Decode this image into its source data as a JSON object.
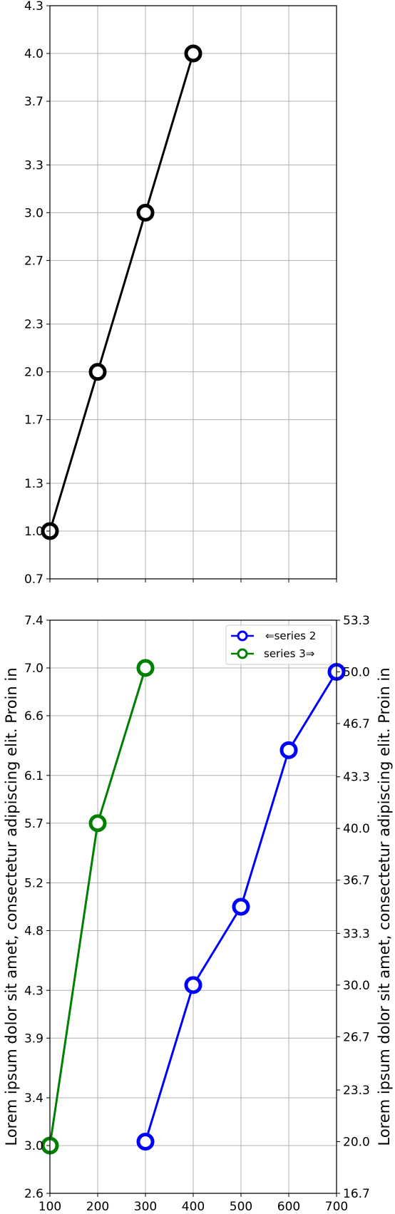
{
  "chart_data": [
    {
      "type": "line",
      "title": "",
      "xlabel": "",
      "ylabel": "",
      "xlim": [
        100,
        700
      ],
      "ylim": [
        0.7,
        4.3
      ],
      "grid": true,
      "x_ticks": [
        100,
        200,
        300,
        400,
        500,
        600,
        700
      ],
      "x_tick_labels_visible": false,
      "y_ticks": [
        0.7,
        1.0,
        1.3,
        1.7,
        2.0,
        2.3,
        2.7,
        3.0,
        3.3,
        3.7,
        4.0,
        4.3
      ],
      "y_tick_labels": [
        "0.7",
        "1.0",
        "1.3",
        "1.7",
        "2.0",
        "2.3",
        "2.7",
        "3.0",
        "3.3",
        "3.7",
        "4.0",
        "4.3"
      ],
      "series": [
        {
          "color": "#000000",
          "marker": "open-circle",
          "x": [
            100,
            200,
            300,
            400
          ],
          "y": [
            1,
            2,
            3,
            4
          ]
        }
      ]
    },
    {
      "type": "line",
      "title": "",
      "xlabel": "",
      "ylabel_left": "Lorem ipsum dolor sit amet, consectetur adipiscing elit. Proin in",
      "ylabel_right": "Lorem ipsum dolor sit amet, consectetur adipiscing elit. Proin in",
      "xlim": [
        100,
        700
      ],
      "ylim_left": [
        2.6,
        7.4
      ],
      "ylim_right": [
        16.7,
        53.3
      ],
      "grid": true,
      "legend_position": "top-right",
      "x_ticks": [
        100,
        200,
        300,
        400,
        500,
        600,
        700
      ],
      "x_tick_labels": [
        "100",
        "200",
        "300",
        "400",
        "500",
        "600",
        "700"
      ],
      "y_ticks_left": [
        2.6,
        3.0,
        3.4,
        3.9,
        4.3,
        4.8,
        5.2,
        5.7,
        6.1,
        6.6,
        7.0,
        7.4
      ],
      "y_tick_labels_left": [
        "2.6",
        "3.0",
        "3.4",
        "3.9",
        "4.3",
        "4.8",
        "5.2",
        "5.7",
        "6.1",
        "6.6",
        "7.0",
        "7.4"
      ],
      "y_ticks_right": [
        16.7,
        20.0,
        23.3,
        26.7,
        30.0,
        33.3,
        36.7,
        40.0,
        43.3,
        46.7,
        50.0,
        53.3
      ],
      "y_tick_labels_right": [
        "16.7",
        "20.0",
        "23.3",
        "26.7",
        "30.0",
        "33.3",
        "36.7",
        "40.0",
        "43.3",
        "46.7",
        "50.0",
        "53.3"
      ],
      "series": [
        {
          "name": "⇐series 2",
          "color": "#0000ff",
          "marker": "open-circle",
          "axis": "right",
          "x": [
            300,
            400,
            500,
            600,
            700
          ],
          "y": [
            20,
            30,
            35,
            45,
            50
          ]
        },
        {
          "name": "series 3⇒",
          "color": "#008000",
          "marker": "open-circle",
          "axis": "left",
          "x": [
            100,
            200,
            300
          ],
          "y": [
            3.0,
            5.7,
            7.0
          ]
        }
      ]
    }
  ]
}
